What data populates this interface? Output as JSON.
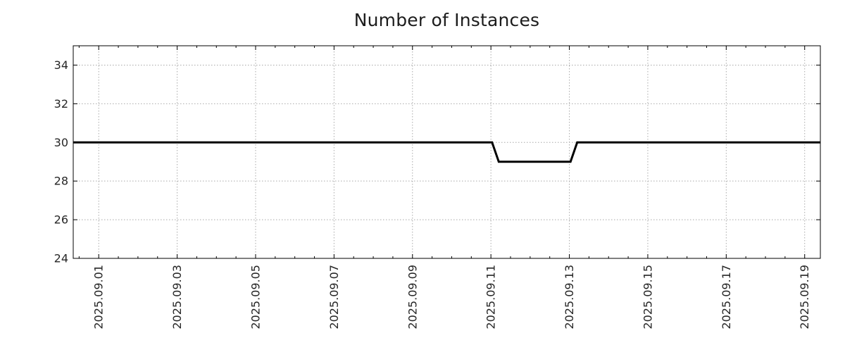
{
  "chart_data": {
    "type": "line",
    "title": "Number of Instances",
    "xlabel": "",
    "ylabel": "",
    "legend": "none",
    "grid": "dotted",
    "x_axis": {
      "unit": "date",
      "tick_labels": [
        "2025.09.01",
        "2025.09.03",
        "2025.09.05",
        "2025.09.07",
        "2025.09.09",
        "2025.09.11",
        "2025.09.13",
        "2025.09.15",
        "2025.09.17",
        "2025.09.19"
      ],
      "tick_positions_days": [
        0,
        2,
        4,
        6,
        8,
        10,
        12,
        14,
        16,
        18
      ],
      "minor_tick_step_days": 0.5,
      "xlim_days": [
        -0.65,
        18.4
      ],
      "days_origin": "2025.09.01"
    },
    "y_axis": {
      "tick_labels": [
        "24",
        "26",
        "28",
        "30",
        "32",
        "34"
      ],
      "tick_values": [
        24,
        26,
        28,
        30,
        32,
        34
      ],
      "ylim": [
        24,
        35
      ]
    },
    "series": [
      {
        "name": "instances",
        "color": "#000000",
        "points": [
          {
            "x_days": -0.65,
            "value": 30
          },
          {
            "x_days": 10.03,
            "value": 30
          },
          {
            "x_days": 10.2,
            "value": 29
          },
          {
            "x_days": 12.03,
            "value": 29
          },
          {
            "x_days": 12.2,
            "value": 30
          },
          {
            "x_days": 18.4,
            "value": 30
          }
        ],
        "summary": "Constant at 30 instances, dipping to 29 between 2025.09.11 and 2025.09.13"
      }
    ],
    "colors": {
      "line": "#000000",
      "grid": "#a9a9a9",
      "frame": "#000000",
      "text": "#262626",
      "title": "#1c1c1c",
      "background": "#ffffff"
    }
  }
}
